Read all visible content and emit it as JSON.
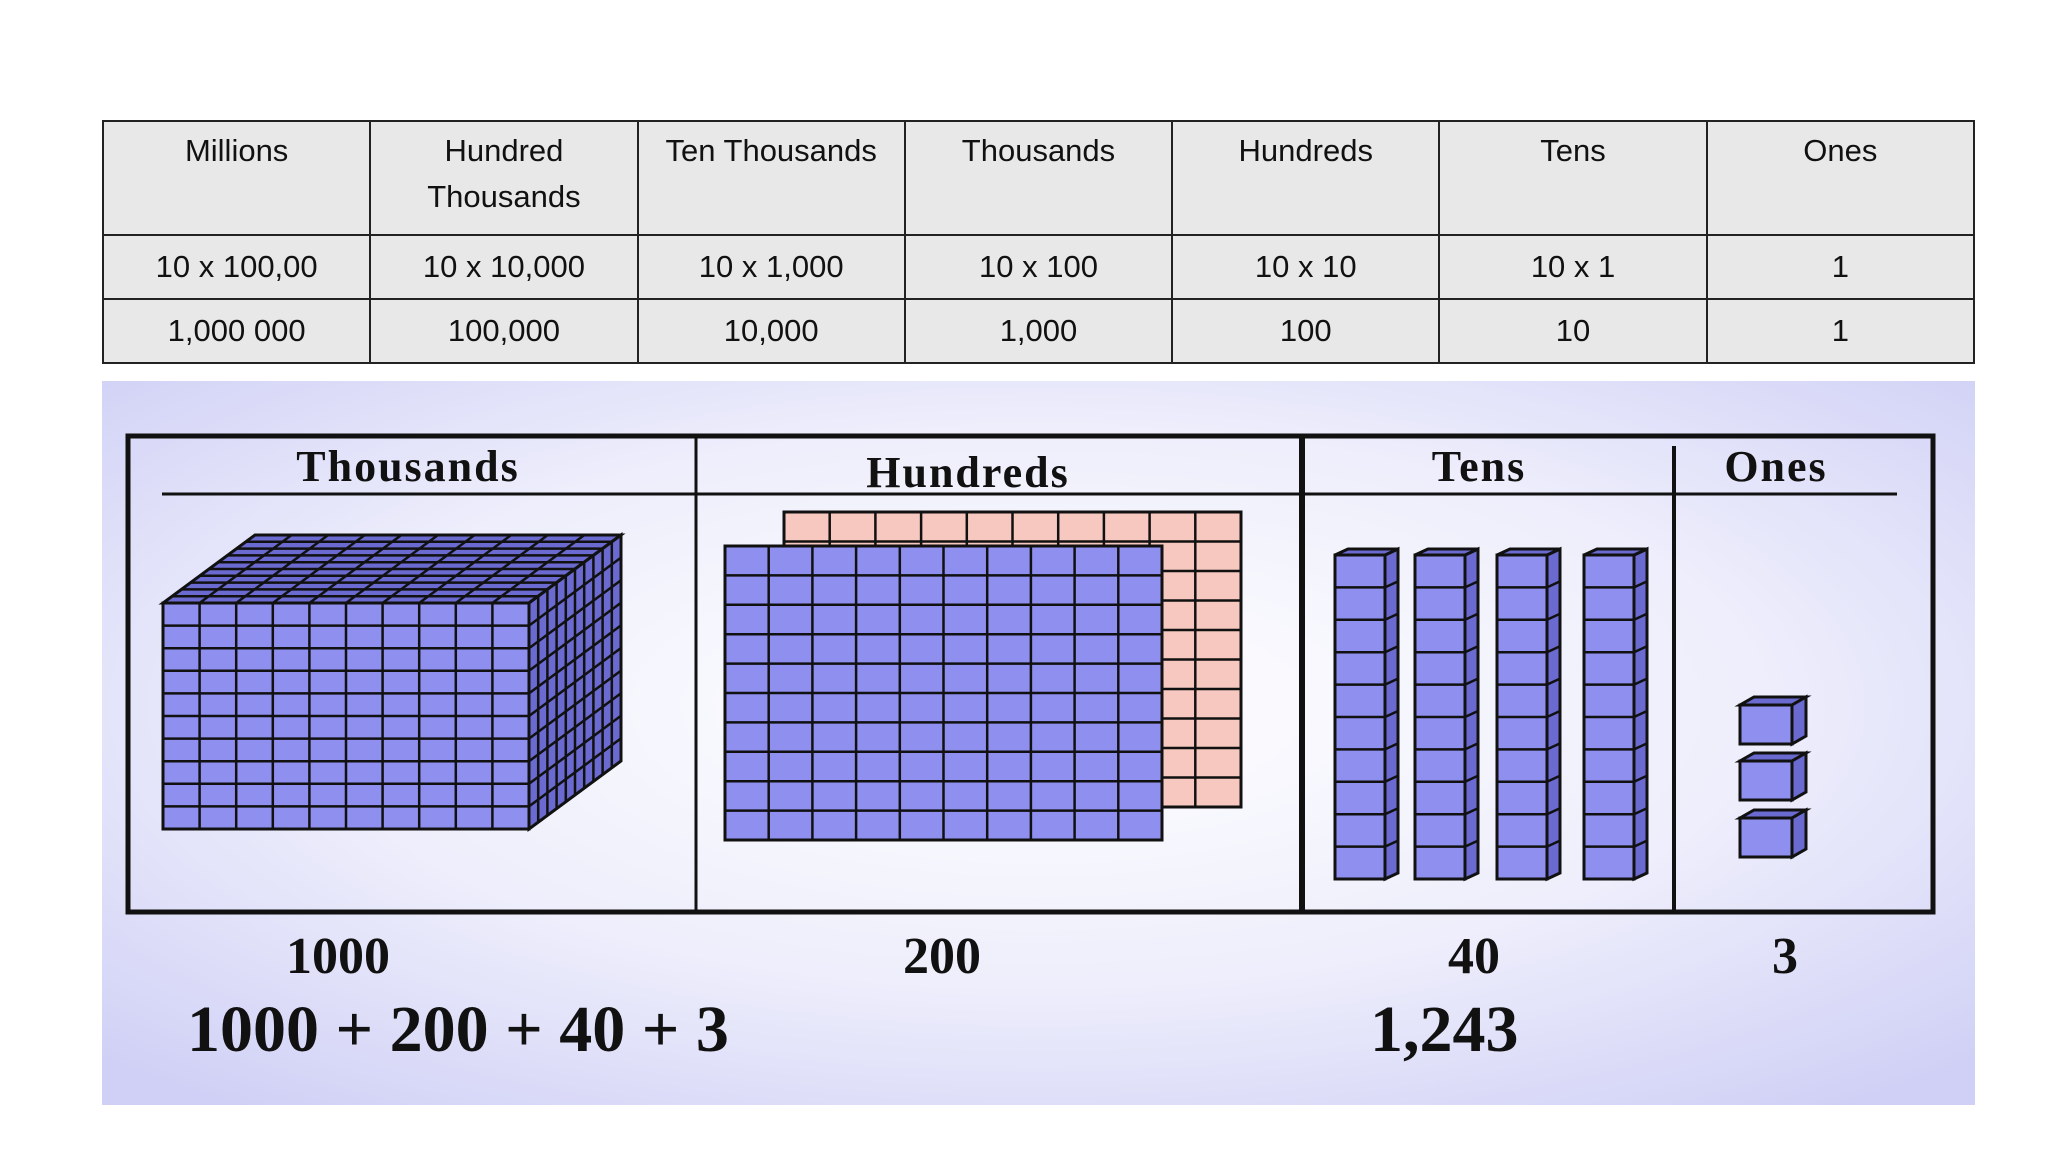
{
  "table": {
    "header": [
      "Millions",
      "Hundred Thousands",
      "Ten Thousands",
      "Thousands",
      "Hundreds",
      "Tens",
      "Ones"
    ],
    "rows": [
      [
        "10 x 100,00",
        "10 x 10,000",
        "10 x 1,000",
        "10 x 100",
        "10 x 10",
        "10 x 1",
        "1"
      ],
      [
        "1,000 000",
        "100,000",
        "10,000",
        "1,000",
        "100",
        "10",
        "1"
      ]
    ]
  },
  "figure": {
    "columns": [
      "Thousands",
      "Hundreds",
      "Tens",
      "Ones"
    ],
    "values": [
      "1000",
      "200",
      "40",
      "3"
    ],
    "expression": "1000 + 200 + 40 + 3",
    "total": "1,243"
  }
}
